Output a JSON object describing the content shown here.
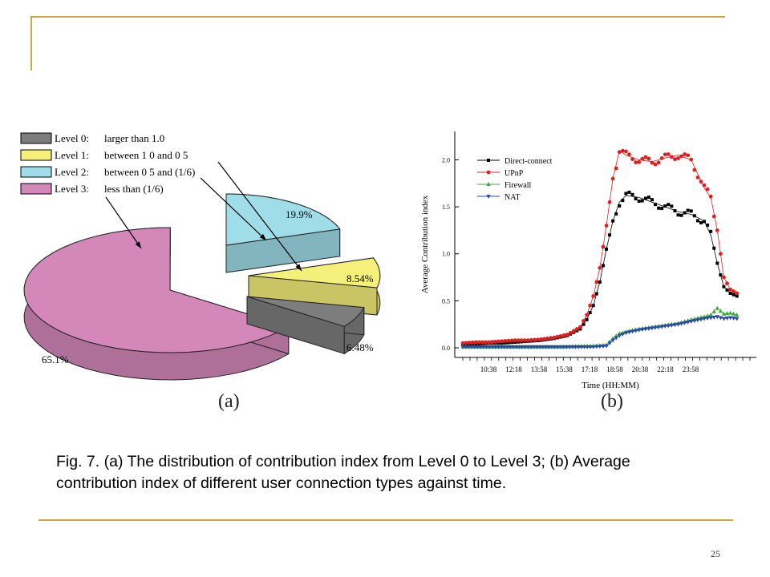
{
  "chart_data": [
    {
      "type": "pie",
      "panel_label": "(a)",
      "legend": [
        {
          "level": "Level 0:",
          "desc": "larger than 1.0",
          "color": "#7d7d7d"
        },
        {
          "level": "Level 1:",
          "desc": "between 1 0 and 0 5",
          "color": "#f5f07a"
        },
        {
          "level": "Level 2:",
          "desc": "between 0 5 and (1/6)",
          "color": "#9fdde8"
        },
        {
          "level": "Level 3:",
          "desc": "less than (1/6)",
          "color": "#d487b9"
        }
      ],
      "slices": [
        {
          "name": "Level 0",
          "value": 6.48,
          "label": "6.48%"
        },
        {
          "name": "Level 1",
          "value": 8.54,
          "label": "8.54%"
        },
        {
          "name": "Level 2",
          "value": 19.9,
          "label": "19.9%"
        },
        {
          "name": "Level 3",
          "value": 65.1,
          "label": "65.1%"
        }
      ]
    },
    {
      "type": "line",
      "panel_label": "(b)",
      "xlabel": "Time (HH:MM)",
      "ylabel": "Average Contribution index",
      "ylim": [
        0,
        2.2
      ],
      "yticks": [
        "0.0",
        "0.5",
        "1.0",
        "1.5",
        "2.0"
      ],
      "xticks": [
        "10:38",
        "12:18",
        "13:58",
        "15:38",
        "17:18",
        "18:58",
        "20:38",
        "22:18",
        "23:58"
      ],
      "legend_position": "top-left",
      "series": [
        {
          "name": "Direct-connect",
          "color": "#000000",
          "marker": "square",
          "points": [
            [
              0,
              0.03
            ],
            [
              4,
              0.04
            ],
            [
              8,
              0.05
            ],
            [
              12,
              0.05
            ],
            [
              16,
              0.06
            ],
            [
              20,
              0.07
            ],
            [
              24,
              0.08
            ],
            [
              28,
              0.1
            ],
            [
              32,
              0.13
            ],
            [
              36,
              0.2
            ],
            [
              38,
              0.3
            ],
            [
              40,
              0.45
            ],
            [
              42,
              0.7
            ],
            [
              44,
              1.05
            ],
            [
              46,
              1.35
            ],
            [
              48,
              1.55
            ],
            [
              50,
              1.62
            ],
            [
              54,
              1.6
            ],
            [
              58,
              1.55
            ],
            [
              62,
              1.5
            ],
            [
              66,
              1.45
            ],
            [
              70,
              1.42
            ],
            [
              74,
              1.35
            ],
            [
              76,
              1.2
            ],
            [
              78,
              0.9
            ],
            [
              80,
              0.65
            ],
            [
              82,
              0.58
            ],
            [
              84,
              0.55
            ]
          ]
        },
        {
          "name": "UPnP",
          "color": "#e02020",
          "marker": "circle",
          "points": [
            [
              0,
              0.05
            ],
            [
              4,
              0.06
            ],
            [
              8,
              0.06
            ],
            [
              12,
              0.07
            ],
            [
              16,
              0.08
            ],
            [
              20,
              0.08
            ],
            [
              24,
              0.09
            ],
            [
              28,
              0.11
            ],
            [
              32,
              0.14
            ],
            [
              36,
              0.22
            ],
            [
              38,
              0.35
            ],
            [
              40,
              0.55
            ],
            [
              42,
              0.85
            ],
            [
              44,
              1.3
            ],
            [
              46,
              1.8
            ],
            [
              48,
              2.1
            ],
            [
              50,
              2.05
            ],
            [
              54,
              2.0
            ],
            [
              58,
              1.98
            ],
            [
              62,
              2.02
            ],
            [
              66,
              2.05
            ],
            [
              70,
              2.0
            ],
            [
              72,
              1.85
            ],
            [
              74,
              1.7
            ],
            [
              76,
              1.6
            ],
            [
              78,
              1.25
            ],
            [
              80,
              0.75
            ],
            [
              82,
              0.62
            ],
            [
              84,
              0.58
            ]
          ]
        },
        {
          "name": "Firewall",
          "color": "#3aa83a",
          "marker": "triangle-up",
          "points": [
            [
              0,
              0.01
            ],
            [
              10,
              0.01
            ],
            [
              20,
              0.01
            ],
            [
              30,
              0.01
            ],
            [
              40,
              0.02
            ],
            [
              44,
              0.03
            ],
            [
              46,
              0.1
            ],
            [
              48,
              0.15
            ],
            [
              50,
              0.17
            ],
            [
              54,
              0.2
            ],
            [
              58,
              0.22
            ],
            [
              62,
              0.24
            ],
            [
              66,
              0.26
            ],
            [
              70,
              0.3
            ],
            [
              74,
              0.33
            ],
            [
              76,
              0.35
            ],
            [
              78,
              0.42
            ],
            [
              80,
              0.36
            ],
            [
              82,
              0.37
            ],
            [
              84,
              0.35
            ]
          ]
        },
        {
          "name": "NAT",
          "color": "#2848a8",
          "marker": "triangle-down",
          "points": [
            [
              0,
              0.01
            ],
            [
              10,
              0.01
            ],
            [
              20,
              0.01
            ],
            [
              30,
              0.01
            ],
            [
              40,
              0.01
            ],
            [
              44,
              0.02
            ],
            [
              46,
              0.08
            ],
            [
              48,
              0.13
            ],
            [
              50,
              0.16
            ],
            [
              54,
              0.19
            ],
            [
              58,
              0.21
            ],
            [
              62,
              0.23
            ],
            [
              66,
              0.25
            ],
            [
              70,
              0.28
            ],
            [
              74,
              0.31
            ],
            [
              76,
              0.32
            ],
            [
              78,
              0.33
            ],
            [
              80,
              0.31
            ],
            [
              82,
              0.32
            ],
            [
              84,
              0.31
            ]
          ]
        }
      ]
    }
  ],
  "caption": "Fig. 7. (a) The distribution of contribution index from Level 0 to Level 3; (b) Average contribution index of different user connection types against time.",
  "page_number": "25"
}
